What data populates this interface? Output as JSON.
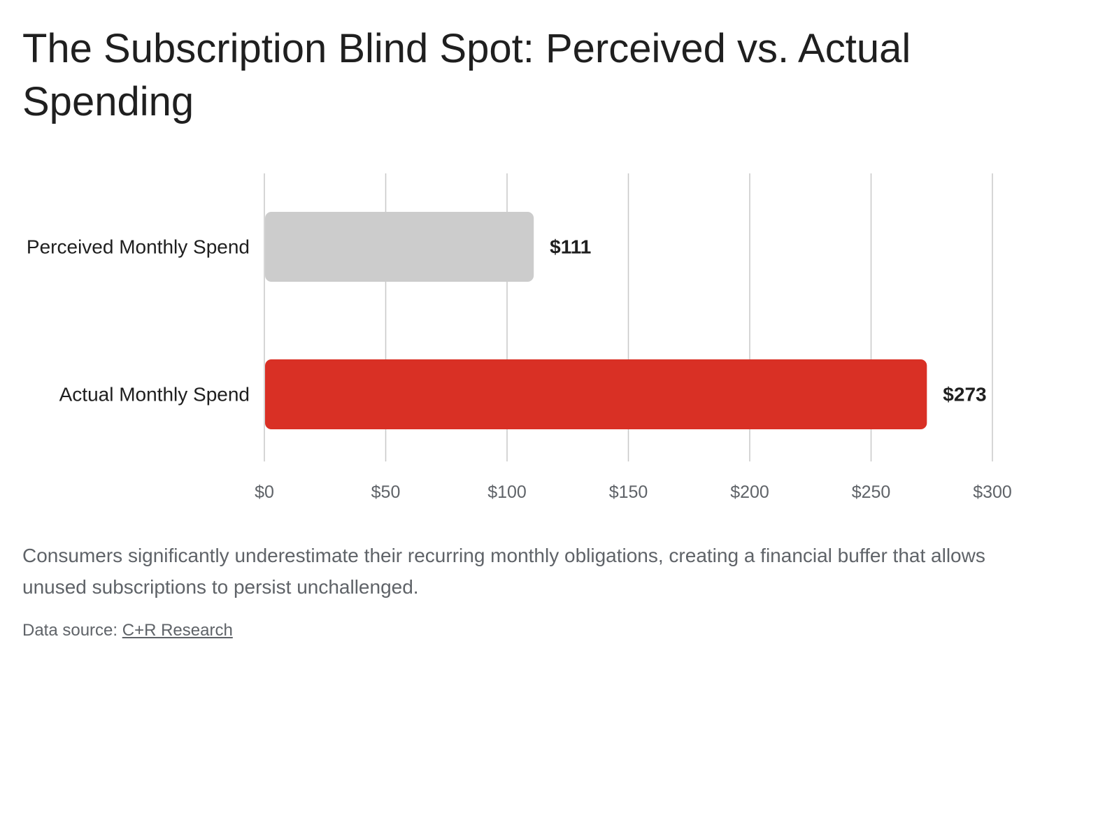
{
  "title": "The Subscription Blind Spot: Perceived vs. Actual Spending",
  "caption": "Consumers significantly underestimate their recurring monthly obligations, creating a financial buffer that allows unused subscriptions to persist unchallenged.",
  "source": {
    "prefix": "Data source: ",
    "link_text": "C+R Research"
  },
  "chart_data": {
    "type": "bar",
    "orientation": "horizontal",
    "title": "The Subscription Blind Spot: Perceived vs. Actual Spending",
    "categories": [
      "Perceived Monthly Spend",
      "Actual Monthly Spend"
    ],
    "values": [
      111,
      273
    ],
    "value_labels": [
      "$111",
      "$273"
    ],
    "colors": [
      "#cccccc",
      "#d93025"
    ],
    "xlim": [
      0,
      300
    ],
    "xticks": [
      0,
      50,
      100,
      150,
      200,
      250,
      300
    ],
    "xtick_labels": [
      "$0",
      "$50",
      "$100",
      "$150",
      "$200",
      "$250",
      "$300"
    ],
    "grid": "vertical",
    "legend": "none"
  }
}
